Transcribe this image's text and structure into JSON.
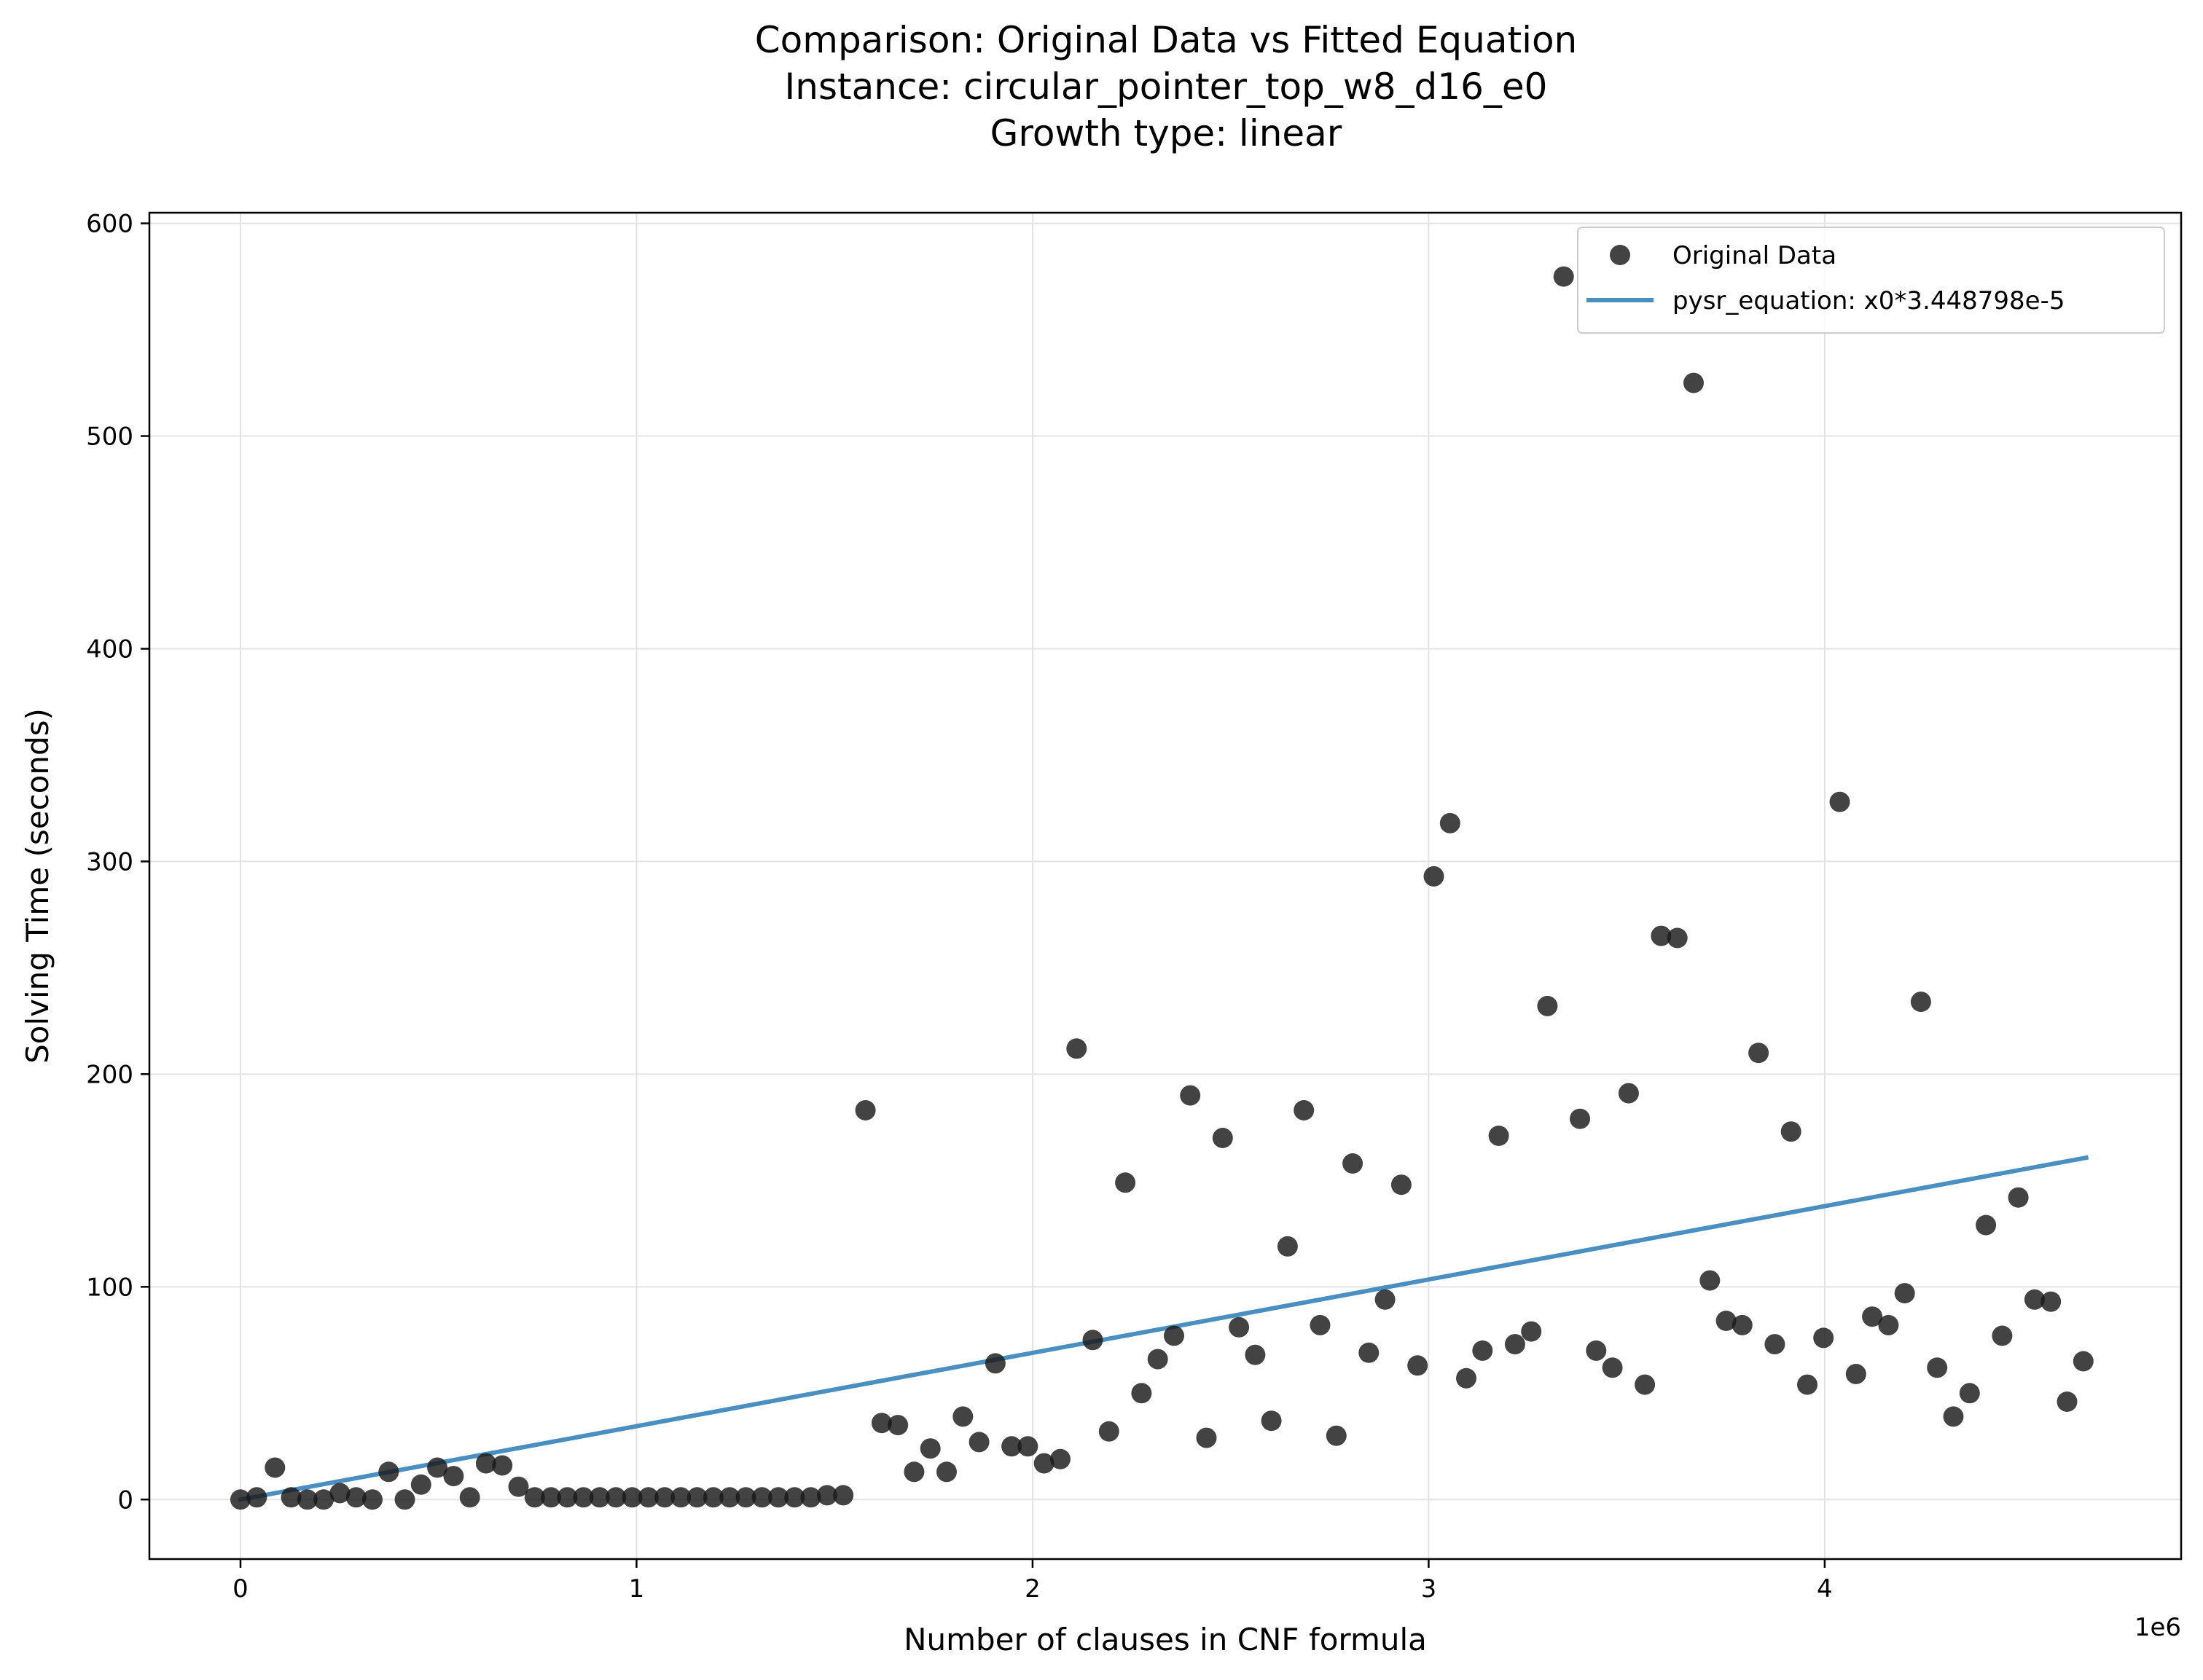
{
  "chart_data": {
    "type": "scatter",
    "title_lines": [
      "Comparison: Original Data vs Fitted Equation",
      "Instance: circular_pointer_top_w8_d16_e0",
      "Growth type: linear"
    ],
    "xlabel": "Number of clauses in CNF formula",
    "ylabel": "Solving Time (seconds)",
    "x_offset_text": "1e6",
    "x_scale": 1000000,
    "xlim": [
      -0.23,
      4.9
    ],
    "ylim": [
      -28,
      605
    ],
    "xticks": [
      0,
      1,
      2,
      3,
      4
    ],
    "xtick_labels": [
      "0",
      "1",
      "2",
      "3",
      "4"
    ],
    "yticks": [
      0,
      100,
      200,
      300,
      400,
      500,
      600
    ],
    "ytick_labels": [
      "0",
      "100",
      "200",
      "300",
      "400",
      "500",
      "600"
    ],
    "grid": true,
    "legend_position": "top-right",
    "scatter_color": "#1a1a1a",
    "line_color": "#4a8fc1",
    "series": [
      {
        "name": "Original Data",
        "kind": "scatter",
        "x": [
          0.0,
          0.041,
          0.087,
          0.128,
          0.169,
          0.21,
          0.251,
          0.292,
          0.333,
          0.374,
          0.415,
          0.456,
          0.497,
          0.538,
          0.579,
          0.62,
          0.661,
          0.702,
          0.743,
          0.784,
          0.825,
          0.866,
          0.907,
          0.948,
          0.989,
          1.03,
          1.071,
          1.112,
          1.153,
          1.194,
          1.235,
          1.276,
          1.317,
          1.358,
          1.399,
          1.44,
          1.481,
          1.522,
          1.578,
          1.619,
          1.66,
          1.701,
          1.742,
          1.783,
          1.824,
          1.865,
          1.906,
          1.947,
          1.988,
          2.029,
          2.07,
          2.111,
          2.152,
          2.193,
          2.234,
          2.275,
          2.316,
          2.357,
          2.398,
          2.439,
          2.48,
          2.521,
          2.562,
          2.603,
          2.644,
          2.685,
          2.726,
          2.767,
          2.808,
          2.849,
          2.89,
          2.931,
          2.972,
          3.013,
          3.054,
          3.095,
          3.136,
          3.177,
          3.218,
          3.259,
          3.3,
          3.341,
          3.382,
          3.423,
          3.464,
          3.505,
          3.546,
          3.587,
          3.628,
          3.669,
          3.71,
          3.751,
          3.792,
          3.833,
          3.874,
          3.915,
          3.956,
          3.997,
          4.038,
          4.079,
          4.12,
          4.161,
          4.202,
          4.243,
          4.284,
          4.325,
          4.366,
          4.407,
          4.448,
          4.489,
          4.53,
          4.571,
          4.612,
          4.653
        ],
        "y": [
          0,
          1,
          15,
          1,
          0,
          0,
          3,
          1,
          0,
          13,
          0,
          7,
          15,
          11,
          1,
          17,
          16,
          6,
          1,
          1,
          1,
          1,
          1,
          1,
          1,
          1,
          1,
          1,
          1,
          1,
          1,
          1,
          1,
          1,
          1,
          1,
          2,
          2,
          183,
          36,
          35,
          13,
          24,
          13,
          39,
          27,
          64,
          25,
          25,
          17,
          19,
          212,
          75,
          32,
          149,
          50,
          66,
          77,
          190,
          29,
          170,
          81,
          68,
          37,
          119,
          183,
          82,
          30,
          158,
          69,
          94,
          148,
          63,
          293,
          318,
          57,
          70,
          171,
          73,
          79,
          232,
          575,
          179,
          70,
          62,
          191,
          54,
          265,
          264,
          525,
          103,
          84,
          82,
          210,
          73,
          173,
          54,
          76,
          328,
          59,
          86,
          82,
          97,
          234,
          62,
          39,
          50,
          129,
          77,
          142,
          94,
          93,
          46,
          65
        ]
      },
      {
        "name": "pysr_equation: x0*3.448798e-5",
        "kind": "line",
        "x": [
          0.0,
          4.66
        ],
        "y": [
          0.0,
          160.7
        ]
      }
    ]
  }
}
